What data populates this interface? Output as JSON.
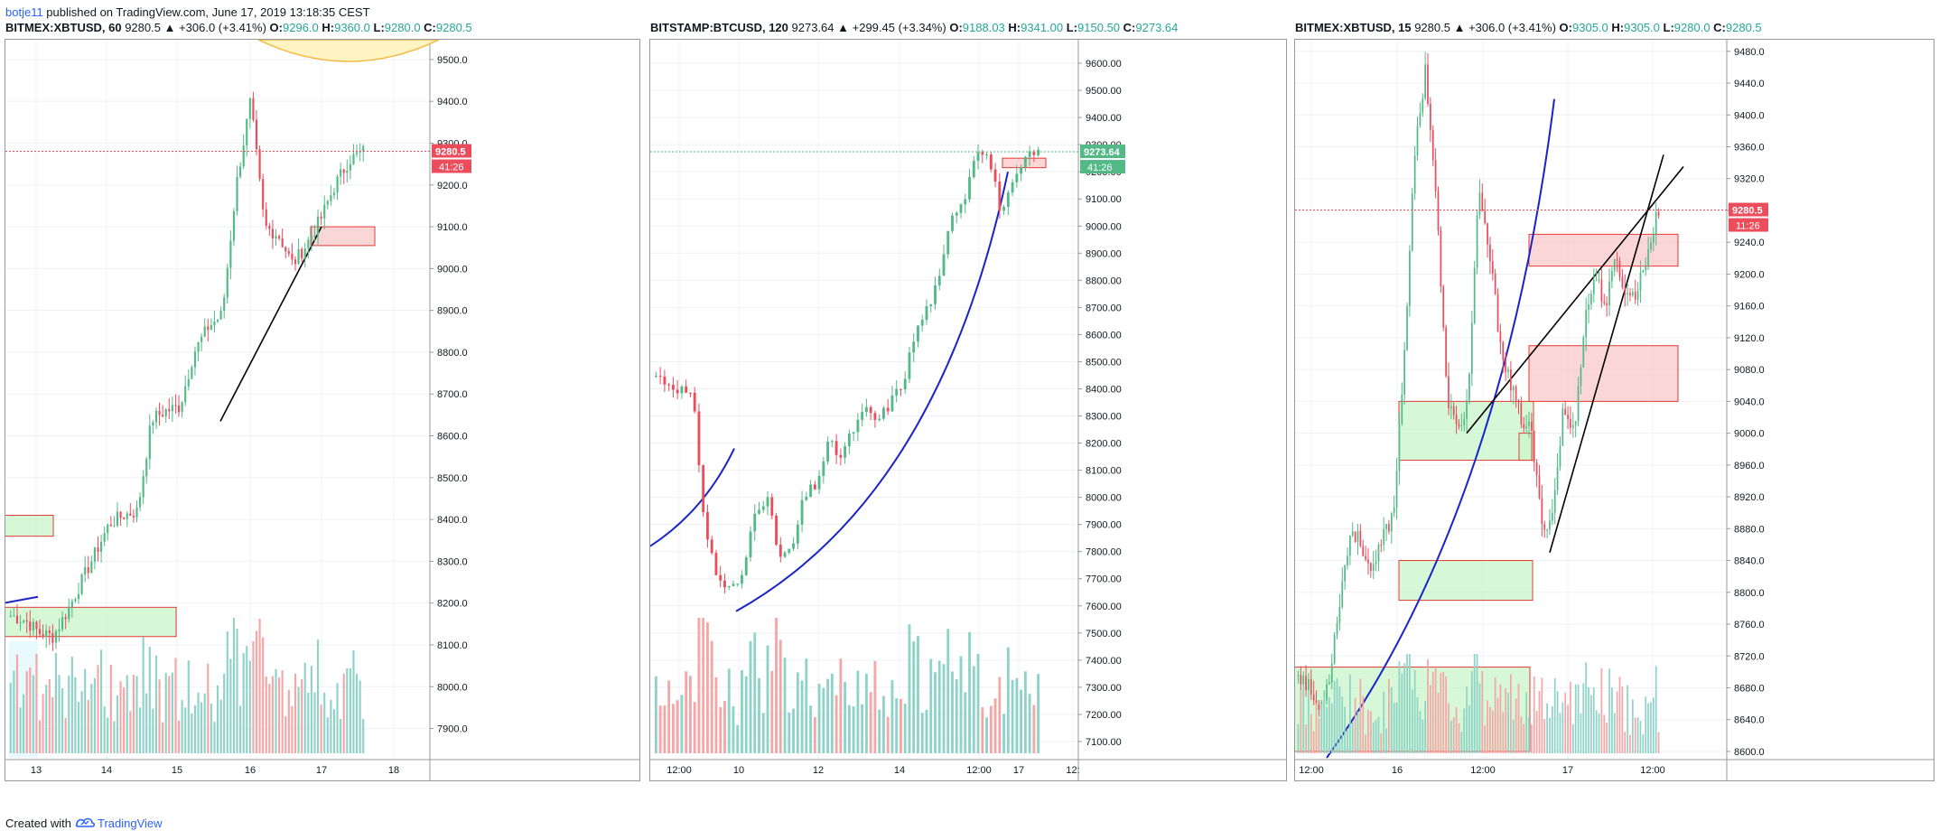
{
  "publish": {
    "author": "botje11",
    "text": " published on TradingView.com, June 17, 2019 13:18:35 CEST"
  },
  "footer": {
    "created_with": "Created with",
    "brand": "TradingView"
  },
  "colors": {
    "up": "#53b987",
    "down": "#eb4d5c",
    "vol_up": "#8fd3c8",
    "vol_down": "#f5a6a6",
    "grid": "#eef0f3",
    "zone_green": "#c8f5c8",
    "zone_red": "#f9c8c8",
    "zone_border": "#e53935",
    "curve": "#1a23c9",
    "accent_blue": "#2962ff"
  },
  "charts": [
    {
      "header": {
        "symbol": "BITMEX:XBTUSD, 60",
        "last": "9280.5",
        "change": "▲ +306.0 (+3.41%)",
        "o_label": "O:",
        "o": "9296.0",
        "h_label": "H:",
        "h": "9360.0",
        "l_label": "L:",
        "l": "9280.0",
        "c_label": "C:",
        "c": "9280.5"
      },
      "price_badge": "9280.5",
      "time_badge": "41:26",
      "y_ticks": [
        "9500.0",
        "9400.0",
        "9300.0",
        "9200.0",
        "9100.0",
        "9000.0",
        "8900.0",
        "8800.0",
        "8700.0",
        "8600.0",
        "8500.0",
        "8400.0",
        "8300.0",
        "8200.0",
        "8100.0",
        "8000.0",
        "7900.0"
      ],
      "x_ticks": [
        "13",
        "14",
        "15",
        "16",
        "17",
        "18"
      ]
    },
    {
      "header": {
        "symbol": "BITSTAMP:BTCUSD, 120",
        "last": "9273.64",
        "change": "▲ +299.45 (+3.34%)",
        "o_label": "O:",
        "o": "9188.03",
        "h_label": "H:",
        "h": "9341.00",
        "l_label": "L:",
        "l": "9150.50",
        "c_label": "C:",
        "c": "9273.64"
      },
      "price_badge": "9273.64",
      "time_badge": "41:26",
      "y_ticks": [
        "9600.00",
        "9500.00",
        "9400.00",
        "9300.00",
        "9200.00",
        "9100.00",
        "9000.00",
        "8900.00",
        "8800.00",
        "8700.00",
        "8600.00",
        "8500.00",
        "8400.00",
        "8300.00",
        "8200.00",
        "8100.00",
        "8000.00",
        "7900.00",
        "7800.00",
        "7700.00",
        "7600.00",
        "7500.00",
        "7400.00",
        "7300.00",
        "7200.00",
        "7100.00"
      ],
      "x_ticks": [
        "12:00",
        "10",
        "12",
        "14",
        "12:00",
        "17",
        "12:"
      ]
    },
    {
      "header": {
        "symbol": "BITMEX:XBTUSD, 15",
        "last": "9280.5",
        "change": "▲ +306.0 (+3.41%)",
        "o_label": "O:",
        "o": "9305.0",
        "h_label": "H:",
        "h": "9305.0",
        "l_label": "L:",
        "l": "9280.0",
        "c_label": "C:",
        "c": "9280.5"
      },
      "price_badge": "9280.5",
      "time_badge": "11:26",
      "y_ticks": [
        "9480.0",
        "9440.0",
        "9400.0",
        "9360.0",
        "9320.0",
        "9280.0",
        "9240.0",
        "9200.0",
        "9160.0",
        "9120.0",
        "9080.0",
        "9040.0",
        "9000.0",
        "8960.0",
        "8920.0",
        "8880.0",
        "8840.0",
        "8800.0",
        "8760.0",
        "8720.0",
        "8680.0",
        "8640.0",
        "8600.0"
      ],
      "x_ticks": [
        "12:00",
        "16",
        "12:00",
        "17",
        "12:00"
      ]
    }
  ]
}
